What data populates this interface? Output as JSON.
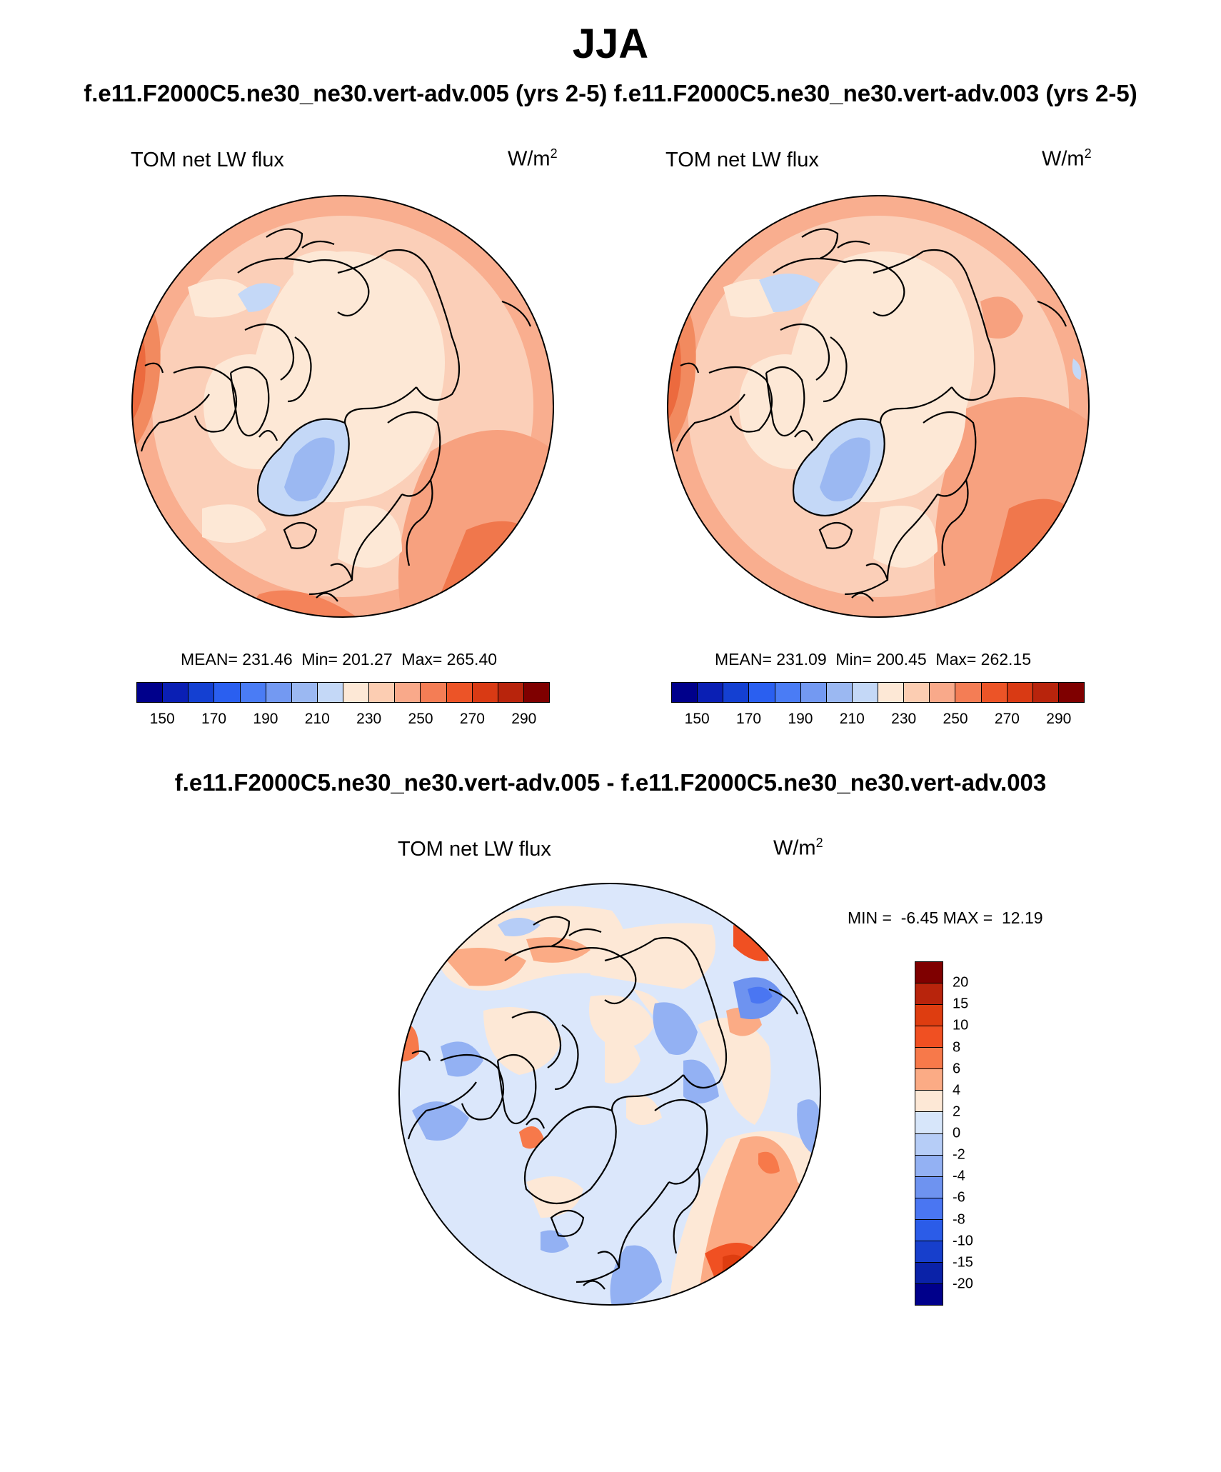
{
  "header": {
    "title": "JJA",
    "subtitle": "f.e11.F2000C5.ne30_ne30.vert-adv.005 (yrs 2-5) f.e11.F2000C5.ne30_ne30.vert-adv.003 (yrs 2-5)",
    "diff_title": "f.e11.F2000C5.ne30_ne30.vert-adv.005 - f.e11.F2000C5.ne30_ne30.vert-adv.003"
  },
  "panels": [
    {
      "variable": "TOM net LW flux",
      "units_base": "W/m",
      "units_sup": "2",
      "stats": "MEAN= 231.46  Min= 201.27  Max= 265.40"
    },
    {
      "variable": "TOM net LW flux",
      "units_base": "W/m",
      "units_sup": "2",
      "stats": "MEAN= 231.09  Min= 200.45  Max= 262.15"
    },
    {
      "variable": "TOM net LW flux",
      "units_base": "W/m",
      "units_sup": "2",
      "stats": "MIN =  -6.45 MAX =  12.19"
    }
  ],
  "colorbar_abs": {
    "colors": [
      "#00008b",
      "#0a1fb4",
      "#1440d2",
      "#2a5ff0",
      "#4a7cf5",
      "#7399f2",
      "#9bb8f2",
      "#c4d8f7",
      "#fde8d6",
      "#fccdb2",
      "#f9a98a",
      "#f47d55",
      "#ec5427",
      "#d93a14",
      "#b8240c",
      "#7f0000"
    ],
    "labels": [
      "150",
      "170",
      "190",
      "210",
      "230",
      "250",
      "270",
      "290"
    ]
  },
  "colorbar_diff": {
    "colors": [
      "#7f0000",
      "#b8240c",
      "#de3d10",
      "#f05022",
      "#f7794a",
      "#fbab85",
      "#fde8d6",
      "#d7e6fa",
      "#b6cdf7",
      "#93b1f3",
      "#6e93f0",
      "#4a76f2",
      "#2b5ce8",
      "#173fcc",
      "#0a22a8",
      "#00008b"
    ],
    "labels": [
      "20",
      "15",
      "10",
      "8",
      "6",
      "4",
      "2",
      "0",
      "-2",
      "-4",
      "-6",
      "-8",
      "-10",
      "-15",
      "-20"
    ]
  }
}
